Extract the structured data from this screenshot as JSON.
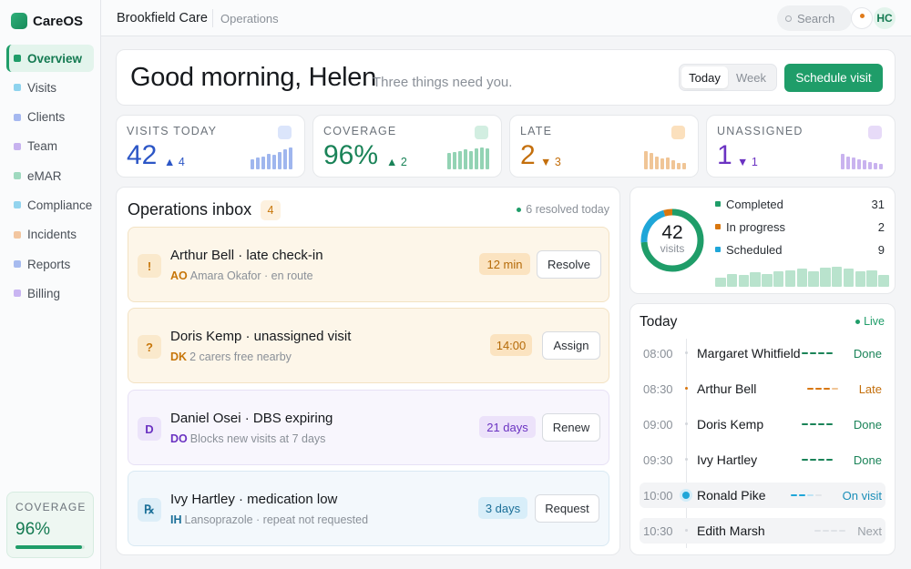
{
  "app": {
    "name": "CareOS",
    "org": "Brookfield Care",
    "section": "Operations"
  },
  "nav": [
    {
      "label": "Overview",
      "color": "#1f9d69",
      "active": true
    },
    {
      "label": "Visits",
      "color": "#8ed3ee"
    },
    {
      "label": "Clients",
      "color": "#a5b8f0"
    },
    {
      "label": "Team",
      "color": "#c7b2ef"
    },
    {
      "label": "eMAR",
      "color": "#9fd9bf"
    },
    {
      "label": "Compliance",
      "color": "#93d4ee"
    },
    {
      "label": "Incidents",
      "color": "#f2c6a0"
    },
    {
      "label": "Reports",
      "color": "#a7bbef"
    },
    {
      "label": "Billing",
      "color": "#c9b5f2"
    }
  ],
  "sidebar_coverage": {
    "label": "COVERAGE",
    "value": "96%",
    "fraction": 0.96
  },
  "topbar": {
    "search_placeholder": "Search",
    "avatar_initials": "HC"
  },
  "greeting": {
    "title": "Good morning, Helen",
    "subtitle": "Three things need you.",
    "range_options": [
      "Today",
      "Week"
    ],
    "range_selected": "Today",
    "cta": "Schedule visit"
  },
  "stats": [
    {
      "label": "VISITS TODAY",
      "value": "42",
      "delta": "▲ 4",
      "color": "#2c56c6",
      "accent": "#dbe5fb",
      "bars": "#9fb6ee",
      "spark": [
        0.45,
        0.55,
        0.6,
        0.7,
        0.65,
        0.8,
        0.9,
        1.0
      ]
    },
    {
      "label": "COVERAGE",
      "value": "96%",
      "delta": "▲ 2",
      "color": "#1a8358",
      "accent": "#d2eee1",
      "bars": "#93d3b4",
      "spark": [
        0.75,
        0.8,
        0.85,
        0.9,
        0.85,
        0.95,
        1.0,
        0.95
      ]
    },
    {
      "label": "LATE",
      "value": "2",
      "delta": "▼ 3",
      "color": "#c46f0c",
      "accent": "#fbe0bd",
      "bars": "#f0c596",
      "spark": [
        0.85,
        0.75,
        0.6,
        0.5,
        0.55,
        0.4,
        0.3,
        0.3
      ]
    },
    {
      "label": "UNASSIGNED",
      "value": "1",
      "delta": "▼ 1",
      "color": "#6b33c2",
      "accent": "#e7dbf8",
      "bars": "#c9b3ef",
      "spark": [
        0.7,
        0.6,
        0.55,
        0.45,
        0.4,
        0.35,
        0.3,
        0.25
      ]
    }
  ],
  "inbox": {
    "title": "Operations inbox",
    "count": "4",
    "resolved": "6 resolved today",
    "items": [
      {
        "icon": "!",
        "title": "Arthur Bell · late check-in",
        "initials": "AO",
        "meta": "Amara Okafor · en route",
        "pill": "12 min",
        "action": "Resolve",
        "bg": "#fdf6e9",
        "border": "#f3e2c3",
        "icbg": "#fae9cc",
        "icfg": "#c7760a",
        "pillbg": "#fbe3c0",
        "pillfg": "#b56a08",
        "inifg": "#c7760a"
      },
      {
        "icon": "?",
        "title": "Doris Kemp · unassigned visit",
        "initials": "DK",
        "meta": "2 carers free nearby",
        "pill": "14:00",
        "action": "Assign",
        "bg": "#fdf6e9",
        "border": "#f3e2c3",
        "icbg": "#fae9cc",
        "icfg": "#c7760a",
        "pillbg": "#fbe3c0",
        "pillfg": "#b56a08",
        "inifg": "#c7760a"
      },
      {
        "icon": "D",
        "title": "Daniel Osei · DBS expiring",
        "initials": "DO",
        "meta": "Blocks new visits at 7 days",
        "pill": "21 days",
        "action": "Renew",
        "bg": "#f8f6fd",
        "border": "#e7e1f5",
        "icbg": "#ece4fa",
        "icfg": "#6b33c2",
        "pillbg": "#ece2fa",
        "pillfg": "#6b33c2",
        "inifg": "#6b33c2"
      },
      {
        "icon": "℞",
        "title": "Ivy Hartley · medication low",
        "initials": "IH",
        "meta": "Lansoprazole · repeat not requested",
        "pill": "3 days",
        "action": "Request",
        "bg": "#f3f8fc",
        "border": "#d9e9f3",
        "icbg": "#ddeef8",
        "icfg": "#1b6f98",
        "pillbg": "#d8eef9",
        "pillfg": "#1b6f98",
        "inifg": "#1b6f98"
      }
    ]
  },
  "donut": {
    "total": "42",
    "unit": "visits",
    "legend": [
      {
        "label": "Completed",
        "value": 31,
        "color": "#1f9d69"
      },
      {
        "label": "In progress",
        "value": 2,
        "color": "#d9770f"
      },
      {
        "label": "Scheduled",
        "value": 9,
        "color": "#1fa6d8"
      }
    ],
    "spark": [
      0.45,
      0.6,
      0.55,
      0.7,
      0.6,
      0.75,
      0.8,
      0.85,
      0.75,
      0.9,
      0.95,
      0.85,
      0.75,
      0.8,
      0.55
    ]
  },
  "schedule": {
    "title": "Today",
    "live": "Live",
    "rows": [
      {
        "time": "08:00",
        "name": "Margaret Whitfield",
        "status": "Done",
        "color": "#1a8358",
        "kind": "done"
      },
      {
        "time": "08:30",
        "name": "Arthur Bell",
        "status": "Late",
        "color": "#c46f0c",
        "kind": "late"
      },
      {
        "time": "09:00",
        "name": "Doris Kemp",
        "status": "Done",
        "color": "#1a8358",
        "kind": "done"
      },
      {
        "time": "09:30",
        "name": "Ivy Hartley",
        "status": "Done",
        "color": "#1a8358",
        "kind": "done"
      },
      {
        "time": "10:00",
        "name": "Ronald Pike",
        "status": "On visit",
        "color": "#1a8eb8",
        "kind": "onvisit"
      },
      {
        "time": "10:30",
        "name": "Edith Marsh",
        "status": "Next",
        "color": "#9aa0a7",
        "kind": "next"
      }
    ]
  }
}
